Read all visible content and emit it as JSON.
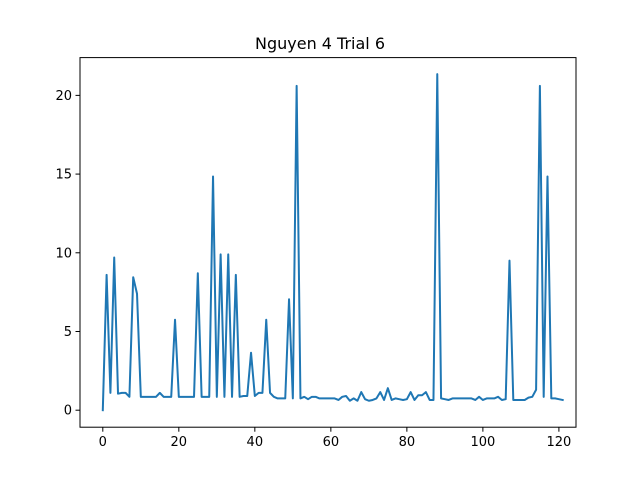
{
  "chart_data": {
    "type": "line",
    "title": "Nguyen 4 Trial 6",
    "xlabel": "",
    "ylabel": "",
    "xlim": [
      -6,
      124.5
    ],
    "ylim": [
      -1.08,
      22.4
    ],
    "x_ticks": [
      0,
      20,
      40,
      60,
      80,
      100,
      120
    ],
    "y_ticks": [
      0,
      5,
      10,
      15,
      20
    ],
    "grid": false,
    "line_color": "#1f77b4",
    "series": [
      {
        "x_start": 0,
        "x_step": 1,
        "values": [
          0.0,
          8.6,
          1.1,
          9.7,
          1.05,
          1.1,
          1.1,
          0.85,
          8.45,
          7.4,
          0.85,
          0.85,
          0.85,
          0.85,
          0.85,
          1.1,
          0.85,
          0.85,
          0.85,
          5.75,
          0.85,
          0.85,
          0.85,
          0.85,
          0.85,
          8.7,
          0.85,
          0.85,
          0.85,
          14.85,
          0.85,
          9.9,
          0.85,
          9.9,
          0.85,
          8.6,
          0.85,
          0.9,
          0.9,
          3.65,
          0.9,
          1.1,
          1.1,
          5.75,
          1.1,
          0.85,
          0.75,
          0.75,
          0.75,
          7.05,
          0.75,
          20.6,
          0.75,
          0.85,
          0.7,
          0.85,
          0.85,
          0.75,
          0.75,
          0.75,
          0.75,
          0.75,
          0.65,
          0.85,
          0.9,
          0.6,
          0.75,
          0.6,
          1.15,
          0.7,
          0.6,
          0.65,
          0.75,
          1.15,
          0.65,
          1.4,
          0.65,
          0.75,
          0.7,
          0.65,
          0.7,
          1.15,
          0.65,
          0.95,
          0.95,
          1.15,
          0.65,
          0.65,
          21.35,
          0.75,
          0.7,
          0.65,
          0.75,
          0.75,
          0.75,
          0.75,
          0.75,
          0.75,
          0.65,
          0.85,
          0.65,
          0.75,
          0.75,
          0.75,
          0.85,
          0.65,
          0.7,
          9.5,
          0.65,
          0.65,
          0.65,
          0.65,
          0.8,
          0.85,
          1.3,
          20.6,
          0.85,
          14.85,
          0.75,
          0.75,
          0.7,
          0.65
        ]
      }
    ]
  }
}
